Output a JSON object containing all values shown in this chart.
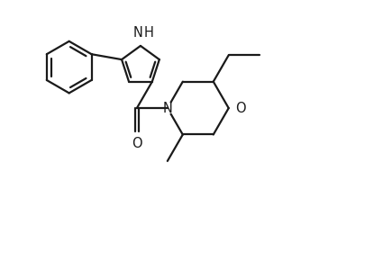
{
  "background_color": "#ffffff",
  "line_color": "#1a1a1a",
  "line_width": 1.6,
  "font_size": 10.5,
  "figsize": [
    4.25,
    2.81
  ],
  "dpi": 100,
  "xlim": [
    0,
    10.5
  ],
  "ylim": [
    0,
    7.0
  ]
}
